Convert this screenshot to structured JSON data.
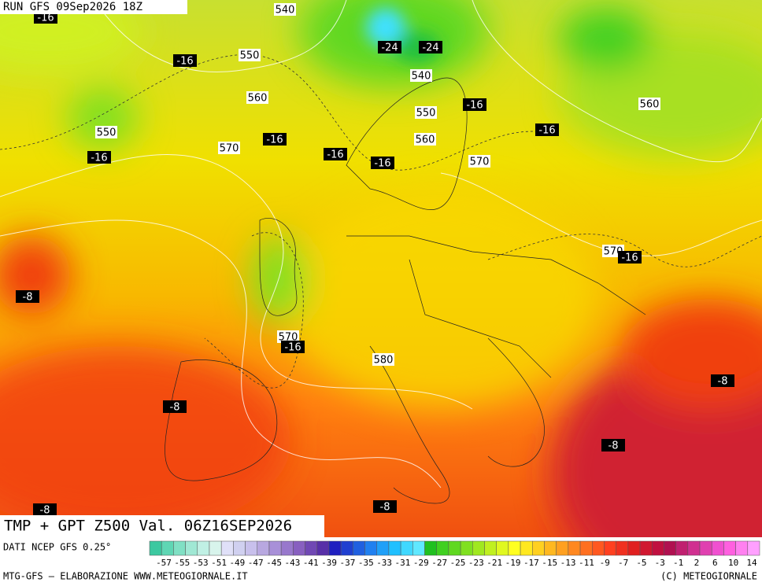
{
  "header": {
    "run": "RUN GFS 09Sep2026 18Z"
  },
  "map": {
    "height_labels": [
      "540",
      "550",
      "560",
      "550",
      "570",
      "540",
      "550",
      "560",
      "570",
      "560",
      "570",
      "570",
      "580"
    ],
    "temperature_labels": [
      "-16",
      "-16",
      "-24",
      "-24",
      "-16",
      "-16",
      "-16",
      "-16",
      "-16",
      "-16",
      "-16",
      "-16",
      "-8",
      "-8",
      "-8",
      "-8",
      "-8",
      "-8"
    ]
  },
  "footer": {
    "title": "TMP + GPT Z500 Val. 06Z16SEP2026",
    "source": "DATI NCEP GFS 0.25°",
    "credit": "MTG-GFS — ELABORAZIONE WWW.METEOGIORNALE.IT",
    "copyright": "(C) METEOGIORNALE"
  },
  "colorbar": {
    "labels": [
      "-57",
      "-55",
      "-53",
      "-51",
      "-49",
      "-47",
      "-45",
      "-43",
      "-41",
      "-39",
      "-37",
      "-35",
      "-33",
      "-31",
      "-29",
      "-27",
      "-25",
      "-23",
      "-21",
      "-19",
      "-17",
      "-15",
      "-13",
      "-11",
      "-9",
      "-7",
      "-5",
      "-3",
      "-1",
      "2",
      "6",
      "10",
      "14"
    ],
    "colors": [
      "#3cc8a0",
      "#5fd6b4",
      "#80e0c4",
      "#a0e8d4",
      "#c0f0e4",
      "#d8f4ec",
      "#e0e0f8",
      "#d0d0f0",
      "#c8c0ec",
      "#b8a8e0",
      "#a890d8",
      "#9878cc",
      "#8860c0",
      "#7048b4",
      "#5830a8",
      "#2020c0",
      "#2040d0",
      "#2060e0",
      "#2080f0",
      "#20a0f8",
      "#20c0ff",
      "#40d8ff",
      "#60e8ff",
      "#20c020",
      "#40d020",
      "#60d820",
      "#80e020",
      "#a0e820",
      "#c0f020",
      "#e0f820",
      "#ffff20",
      "#ffe820",
      "#ffd020",
      "#ffb820",
      "#ffa020",
      "#ff8820",
      "#ff7020",
      "#ff5820",
      "#ff4020",
      "#f03020",
      "#e02020",
      "#d01830",
      "#c01040",
      "#b01050",
      "#c02070",
      "#d03090",
      "#e040b0",
      "#f050d0",
      "#ff60e0",
      "#ff80f0",
      "#ffa0ff"
    ]
  }
}
